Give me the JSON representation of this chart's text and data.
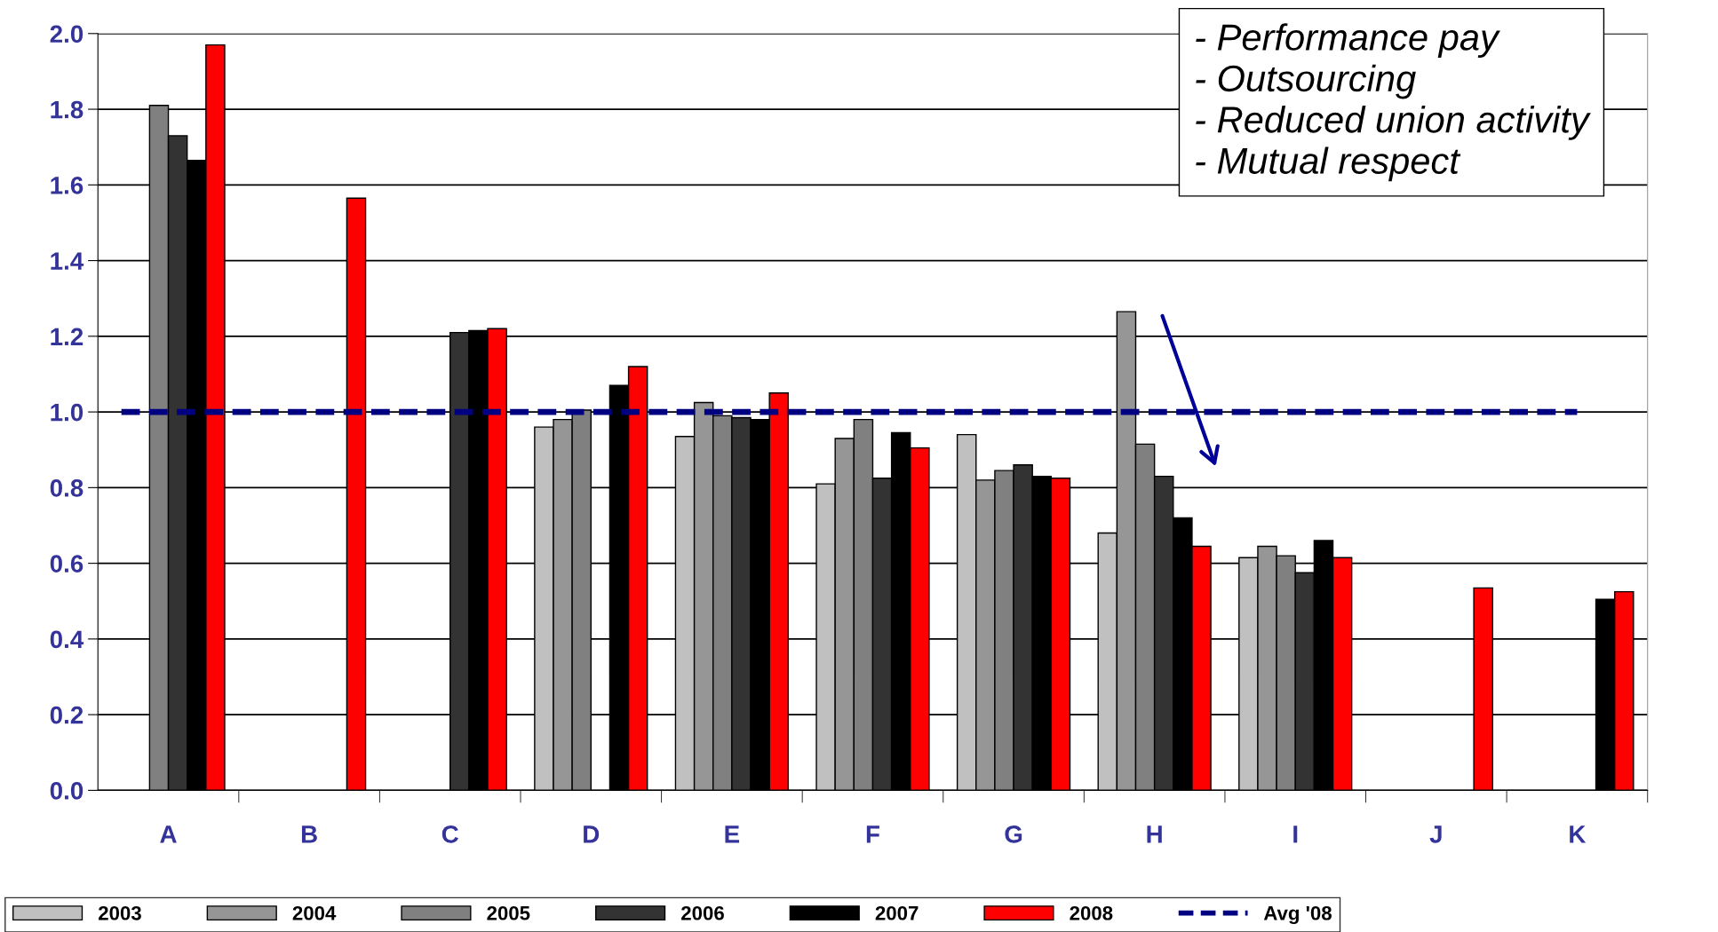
{
  "chart_data": {
    "type": "bar",
    "categories": [
      "A",
      "B",
      "C",
      "D",
      "E",
      "F",
      "G",
      "H",
      "I",
      "J",
      "K"
    ],
    "series": [
      {
        "name": "2003",
        "color": "#c0c0c0",
        "values": [
          null,
          null,
          null,
          0.96,
          0.935,
          0.81,
          0.94,
          0.68,
          0.615,
          null,
          null
        ]
      },
      {
        "name": "2004",
        "color": "#969696",
        "values": [
          null,
          null,
          null,
          0.98,
          1.025,
          0.93,
          0.82,
          1.265,
          0.645,
          null,
          null
        ]
      },
      {
        "name": "2005",
        "color": "#808080",
        "values": [
          1.81,
          null,
          null,
          1.005,
          0.99,
          0.98,
          0.845,
          0.915,
          0.62,
          null,
          null
        ]
      },
      {
        "name": "2006",
        "color": "#333333",
        "values": [
          1.73,
          null,
          1.21,
          null,
          0.985,
          0.825,
          0.86,
          0.83,
          0.575,
          null,
          null
        ]
      },
      {
        "name": "2007",
        "color": "#000000",
        "values": [
          1.665,
          null,
          1.215,
          1.07,
          0.98,
          0.945,
          0.83,
          0.72,
          0.66,
          null,
          0.505
        ]
      },
      {
        "name": "2008",
        "color": "#ff0000",
        "values": [
          1.97,
          1.565,
          1.22,
          1.12,
          1.05,
          0.905,
          0.825,
          0.645,
          0.615,
          0.535,
          0.525
        ]
      }
    ],
    "ylim": [
      0,
      2.0
    ],
    "yticks": [
      {
        "value": 0,
        "label": "0.0"
      },
      {
        "value": 0.2,
        "label": "0.2"
      },
      {
        "value": 0.4,
        "label": "0.4"
      },
      {
        "value": 0.6,
        "label": "0.6"
      },
      {
        "value": 0.8,
        "label": "0.8"
      },
      {
        "value": 1.0,
        "label": "1.0"
      },
      {
        "value": 1.2,
        "label": "1.2"
      },
      {
        "value": 1.4,
        "label": "1.4"
      },
      {
        "value": 1.6,
        "label": "1.6"
      },
      {
        "value": 1.8,
        "label": "1.8"
      },
      {
        "value": 2.0,
        "label": "2.0"
      }
    ],
    "ref_lines": [
      {
        "axis": "y",
        "value": 1.0,
        "label": "Avg '08",
        "color": "#000080",
        "line_style": "dashed"
      }
    ],
    "annotations": [
      "- Performance pay",
      "- Outsourcing",
      "- Reduced union activity",
      "- Mutual respect"
    ],
    "grid": "y",
    "legend": "bottom"
  }
}
